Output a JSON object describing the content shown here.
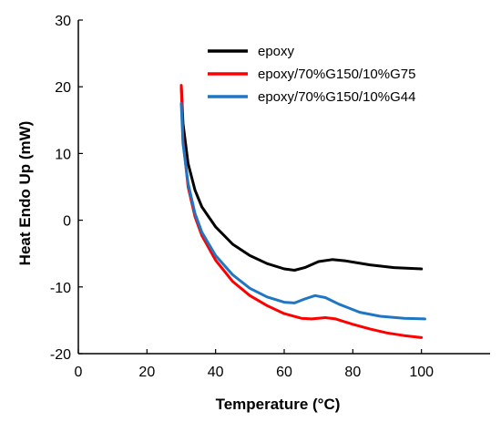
{
  "chart_data": {
    "type": "line",
    "title": "",
    "xlabel": "Temperature (°C)",
    "ylabel": "Heat Endo Up (mW)",
    "xlim": [
      0,
      120
    ],
    "ylim": [
      -20,
      30
    ],
    "xticks": [
      0,
      20,
      40,
      60,
      80,
      100
    ],
    "yticks": [
      -20,
      -10,
      0,
      10,
      20,
      30
    ],
    "grid": false,
    "legend_position": "top-right",
    "series": [
      {
        "name": "epoxy",
        "color": "#000000",
        "points": [
          [
            30,
            20.2
          ],
          [
            30.5,
            14.5
          ],
          [
            32,
            8.5
          ],
          [
            34,
            4.5
          ],
          [
            36,
            2
          ],
          [
            40,
            -1
          ],
          [
            45,
            -3.6
          ],
          [
            50,
            -5.3
          ],
          [
            55,
            -6.5
          ],
          [
            60,
            -7.3
          ],
          [
            63,
            -7.5
          ],
          [
            66,
            -7.1
          ],
          [
            70,
            -6.2
          ],
          [
            74,
            -5.9
          ],
          [
            78,
            -6.1
          ],
          [
            85,
            -6.7
          ],
          [
            92,
            -7.1
          ],
          [
            100,
            -7.3
          ]
        ]
      },
      {
        "name": "epoxy/70%G150/10%G75",
        "color": "#ff0000",
        "points": [
          [
            30,
            20.2
          ],
          [
            30.5,
            12
          ],
          [
            32,
            5
          ],
          [
            34,
            0.5
          ],
          [
            36,
            -2.3
          ],
          [
            40,
            -6
          ],
          [
            45,
            -9.2
          ],
          [
            50,
            -11.3
          ],
          [
            55,
            -12.8
          ],
          [
            60,
            -14
          ],
          [
            65,
            -14.7
          ],
          [
            68,
            -14.8
          ],
          [
            72,
            -14.6
          ],
          [
            75,
            -14.8
          ],
          [
            80,
            -15.6
          ],
          [
            85,
            -16.3
          ],
          [
            90,
            -16.9
          ],
          [
            95,
            -17.3
          ],
          [
            100,
            -17.6
          ]
        ]
      },
      {
        "name": "epoxy/70%G150/10%G44",
        "color": "#1f77c4",
        "points": [
          [
            30,
            17.5
          ],
          [
            30.5,
            11.5
          ],
          [
            32,
            5.5
          ],
          [
            34,
            1
          ],
          [
            36,
            -1.8
          ],
          [
            40,
            -5.3
          ],
          [
            45,
            -8.2
          ],
          [
            50,
            -10.2
          ],
          [
            55,
            -11.5
          ],
          [
            60,
            -12.3
          ],
          [
            63,
            -12.4
          ],
          [
            66,
            -11.8
          ],
          [
            69,
            -11.3
          ],
          [
            72,
            -11.6
          ],
          [
            76,
            -12.6
          ],
          [
            82,
            -13.8
          ],
          [
            88,
            -14.4
          ],
          [
            95,
            -14.7
          ],
          [
            101,
            -14.8
          ]
        ]
      }
    ]
  }
}
